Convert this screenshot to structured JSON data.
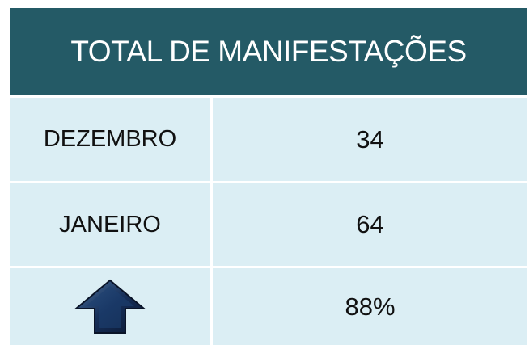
{
  "table": {
    "title": "TOTAL DE MANIFESTAÇÕES",
    "rows": [
      {
        "label": "DEZEMBRO",
        "value": "34"
      },
      {
        "label": "JANEIRO",
        "value": "64"
      },
      {
        "value": "88%"
      }
    ]
  }
}
